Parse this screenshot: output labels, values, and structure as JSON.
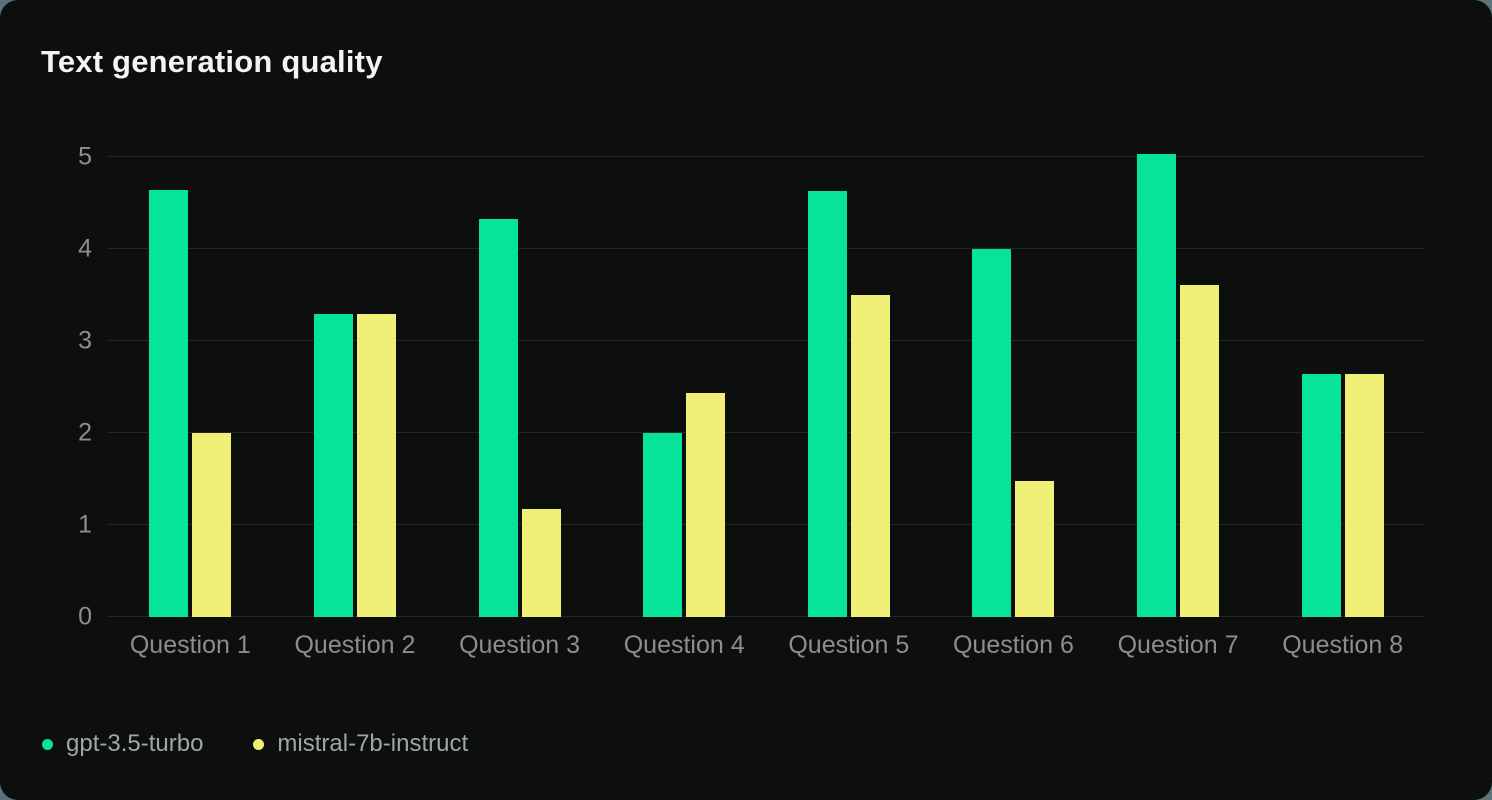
{
  "chart_data": {
    "type": "bar",
    "title": "Text generation quality",
    "categories": [
      "Question 1",
      "Question 2",
      "Question 3",
      "Question 4",
      "Question 5",
      "Question 6",
      "Question 7",
      "Question 8"
    ],
    "series": [
      {
        "name": "gpt-3.5-turbo",
        "color": "#05e49a",
        "values": [
          4.64,
          3.29,
          4.33,
          2.0,
          4.63,
          4.0,
          5.03,
          2.64
        ]
      },
      {
        "name": "mistral-7b-instruct",
        "color": "#f0f078",
        "values": [
          2.0,
          3.29,
          1.17,
          2.43,
          3.5,
          1.48,
          3.61,
          2.64
        ]
      }
    ],
    "xlabel": "",
    "ylabel": "",
    "ylim": [
      0,
      5
    ],
    "yticks": [
      0,
      1,
      2,
      3,
      4,
      5
    ],
    "grid": true,
    "legend_position": "bottom-left"
  },
  "colors": {
    "card_background": "#0d0f0e",
    "page_background": "#5d737b",
    "gridline": "#232826",
    "title_text": "#f4f4f4",
    "axis_text": "#8d8d8d",
    "legend_text": "#a0a6a4"
  }
}
